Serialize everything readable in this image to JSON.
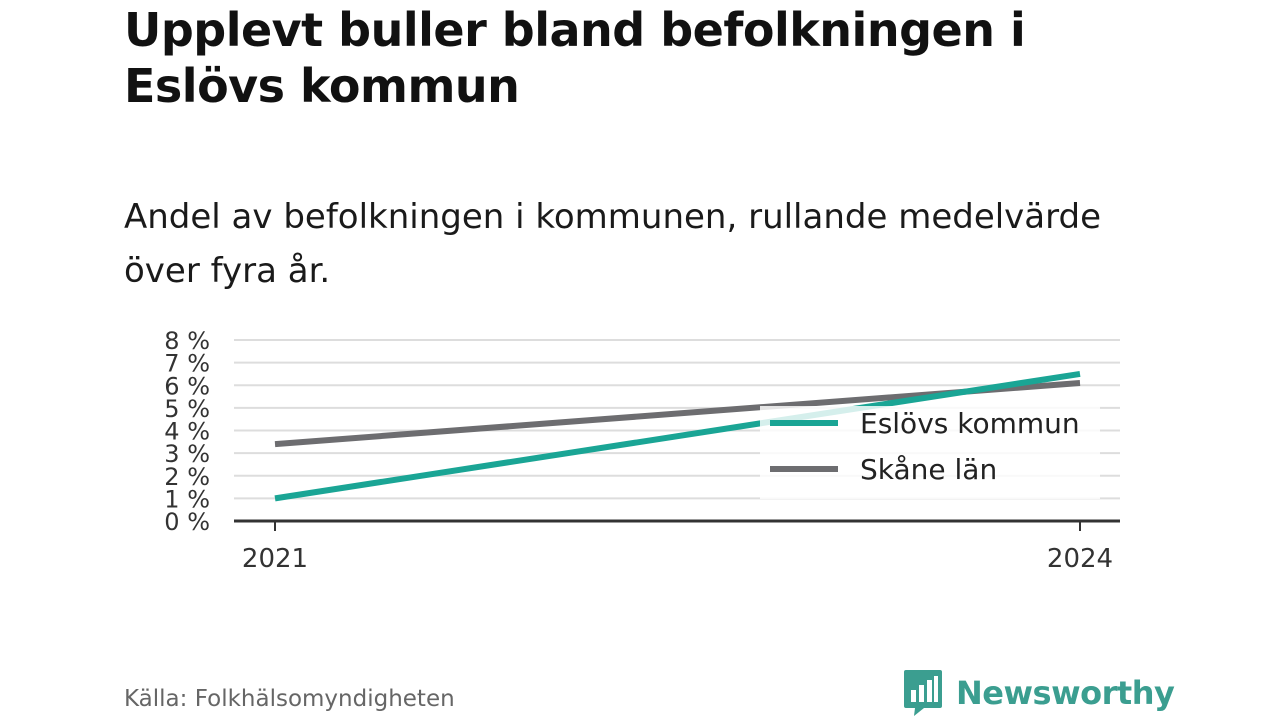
{
  "header": {
    "title": "Upplevt buller bland befolkningen i Eslövs kommun",
    "subtitle": "Andel av befolkningen i kommunen, rullande medelvärde över fyra år."
  },
  "chart_data": {
    "type": "line",
    "x": [
      "2021",
      "2024"
    ],
    "y_ticks": [
      "0 %",
      "1 %",
      "2 %",
      "3 %",
      "4 %",
      "5 %",
      "6 %",
      "7 %",
      "8 %"
    ],
    "ylim": [
      0,
      8
    ],
    "grid": true,
    "legend_position": "right",
    "series": [
      {
        "name": "Eslövs kommun",
        "values": [
          1.0,
          6.5
        ],
        "color": "#1aa595"
      },
      {
        "name": "Skåne län",
        "values": [
          3.4,
          6.1
        ],
        "color": "#6d6d70"
      }
    ]
  },
  "footer": {
    "source": "Källa: Folkhälsomyndigheten",
    "brand": "Newsworthy",
    "brand_icon": "newsworthy-chart-icon",
    "brand_color": "#3b9e90"
  }
}
